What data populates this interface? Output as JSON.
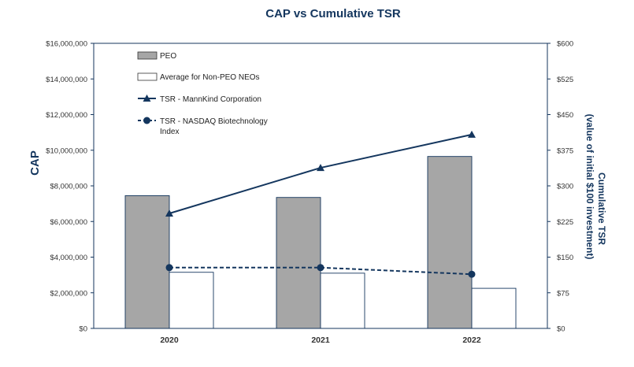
{
  "chart_data": {
    "type": "bar",
    "title": "CAP vs Cumulative TSR",
    "categories": [
      "2020",
      "2021",
      "2022"
    ],
    "ylabel": "CAP",
    "ylim": [
      0,
      16000000
    ],
    "yticks": [
      "$0",
      "$2,000,000",
      "$4,000,000",
      "$6,000,000",
      "$8,000,000",
      "$10,000,000",
      "$12,000,000",
      "$14,000,000",
      "$16,000,000"
    ],
    "y2label_line1": "Cumulative TSR",
    "y2label_line2": "(value of initial $100 investment)",
    "y2lim": [
      0,
      600
    ],
    "y2ticks": [
      "$0",
      "$75",
      "$150",
      "$225",
      "$300",
      "$375",
      "$450",
      "$525",
      "$600"
    ],
    "series": [
      {
        "name": "PEO",
        "kind": "bar",
        "axis": "left",
        "values": [
          7450000,
          7350000,
          9650000
        ],
        "color": "#a6a6a6"
      },
      {
        "name": "Average for Non-PEO NEOs",
        "kind": "bar",
        "axis": "left",
        "values": [
          3150000,
          3100000,
          2250000
        ],
        "color": "#ffffff"
      },
      {
        "name": "TSR - MannKind Corporation",
        "kind": "line",
        "axis": "right",
        "values": [
          242,
          338,
          408
        ],
        "color": "#14365e"
      },
      {
        "name": "TSR - NASDAQ Biotechnology Index",
        "name_line1": "TSR - NASDAQ Biotechnology",
        "name_line2": "Index",
        "kind": "line",
        "axis": "right",
        "values": [
          128,
          128,
          114
        ],
        "color": "#14365e"
      }
    ],
    "legend_position": "top-left inside plot",
    "grid": false
  }
}
